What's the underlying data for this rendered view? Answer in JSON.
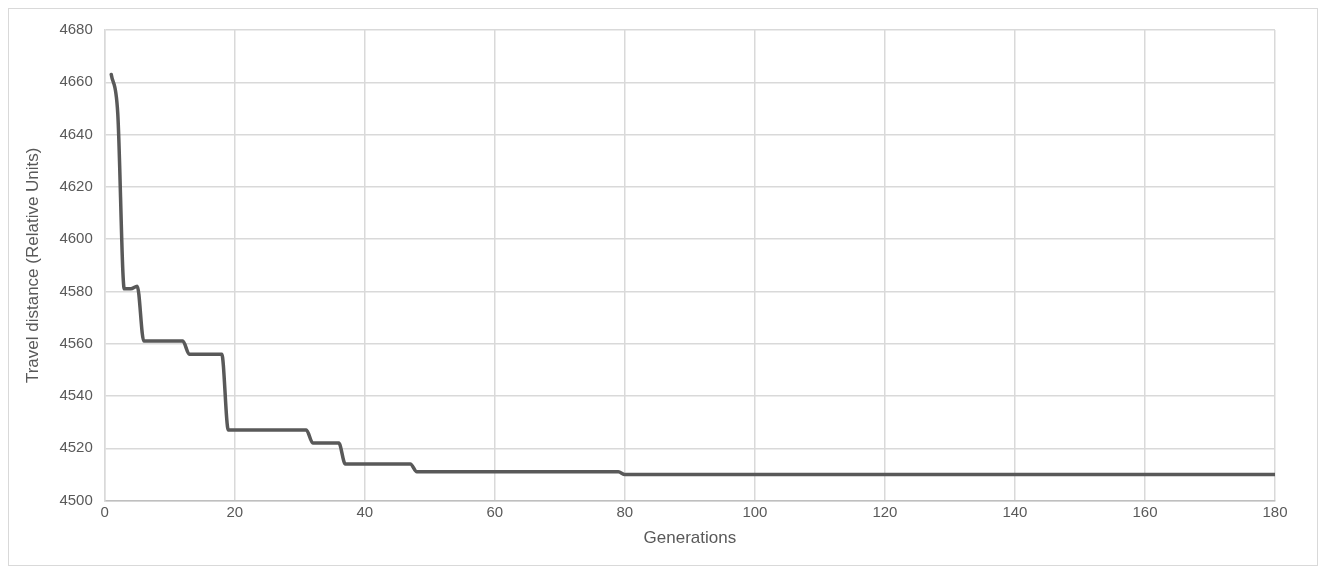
{
  "chart_data": {
    "type": "line",
    "xlabel": "Generations",
    "ylabel": "Travel distance (Relative Units)",
    "series": [
      {
        "color": "#595959",
        "x": [
          1,
          2,
          3,
          4,
          5,
          6,
          7,
          11,
          12,
          13,
          14,
          17,
          18,
          19,
          20,
          30,
          31,
          32,
          33,
          35,
          36,
          37,
          38,
          46,
          47,
          48,
          49,
          78,
          79,
          80,
          81,
          180
        ],
        "values": [
          4663,
          4648,
          4581,
          4581,
          4582,
          4561,
          4561,
          4561,
          4561,
          4556,
          4556,
          4556,
          4556,
          4527,
          4527,
          4527,
          4527,
          4522,
          4522,
          4522,
          4522,
          4514,
          4514,
          4514,
          4514,
          4511,
          4511,
          4511,
          4511,
          4510,
          4510,
          4510
        ]
      }
    ],
    "xlim": [
      0,
      180
    ],
    "xticks": [
      0,
      20,
      40,
      60,
      80,
      100,
      120,
      140,
      160,
      180
    ],
    "ylim": [
      4500,
      4680
    ],
    "yticks": [
      4500,
      4520,
      4540,
      4560,
      4580,
      4600,
      4620,
      4640,
      4660,
      4680
    ],
    "grid": true,
    "legend": false,
    "marker": "none",
    "line_style": "solid"
  }
}
